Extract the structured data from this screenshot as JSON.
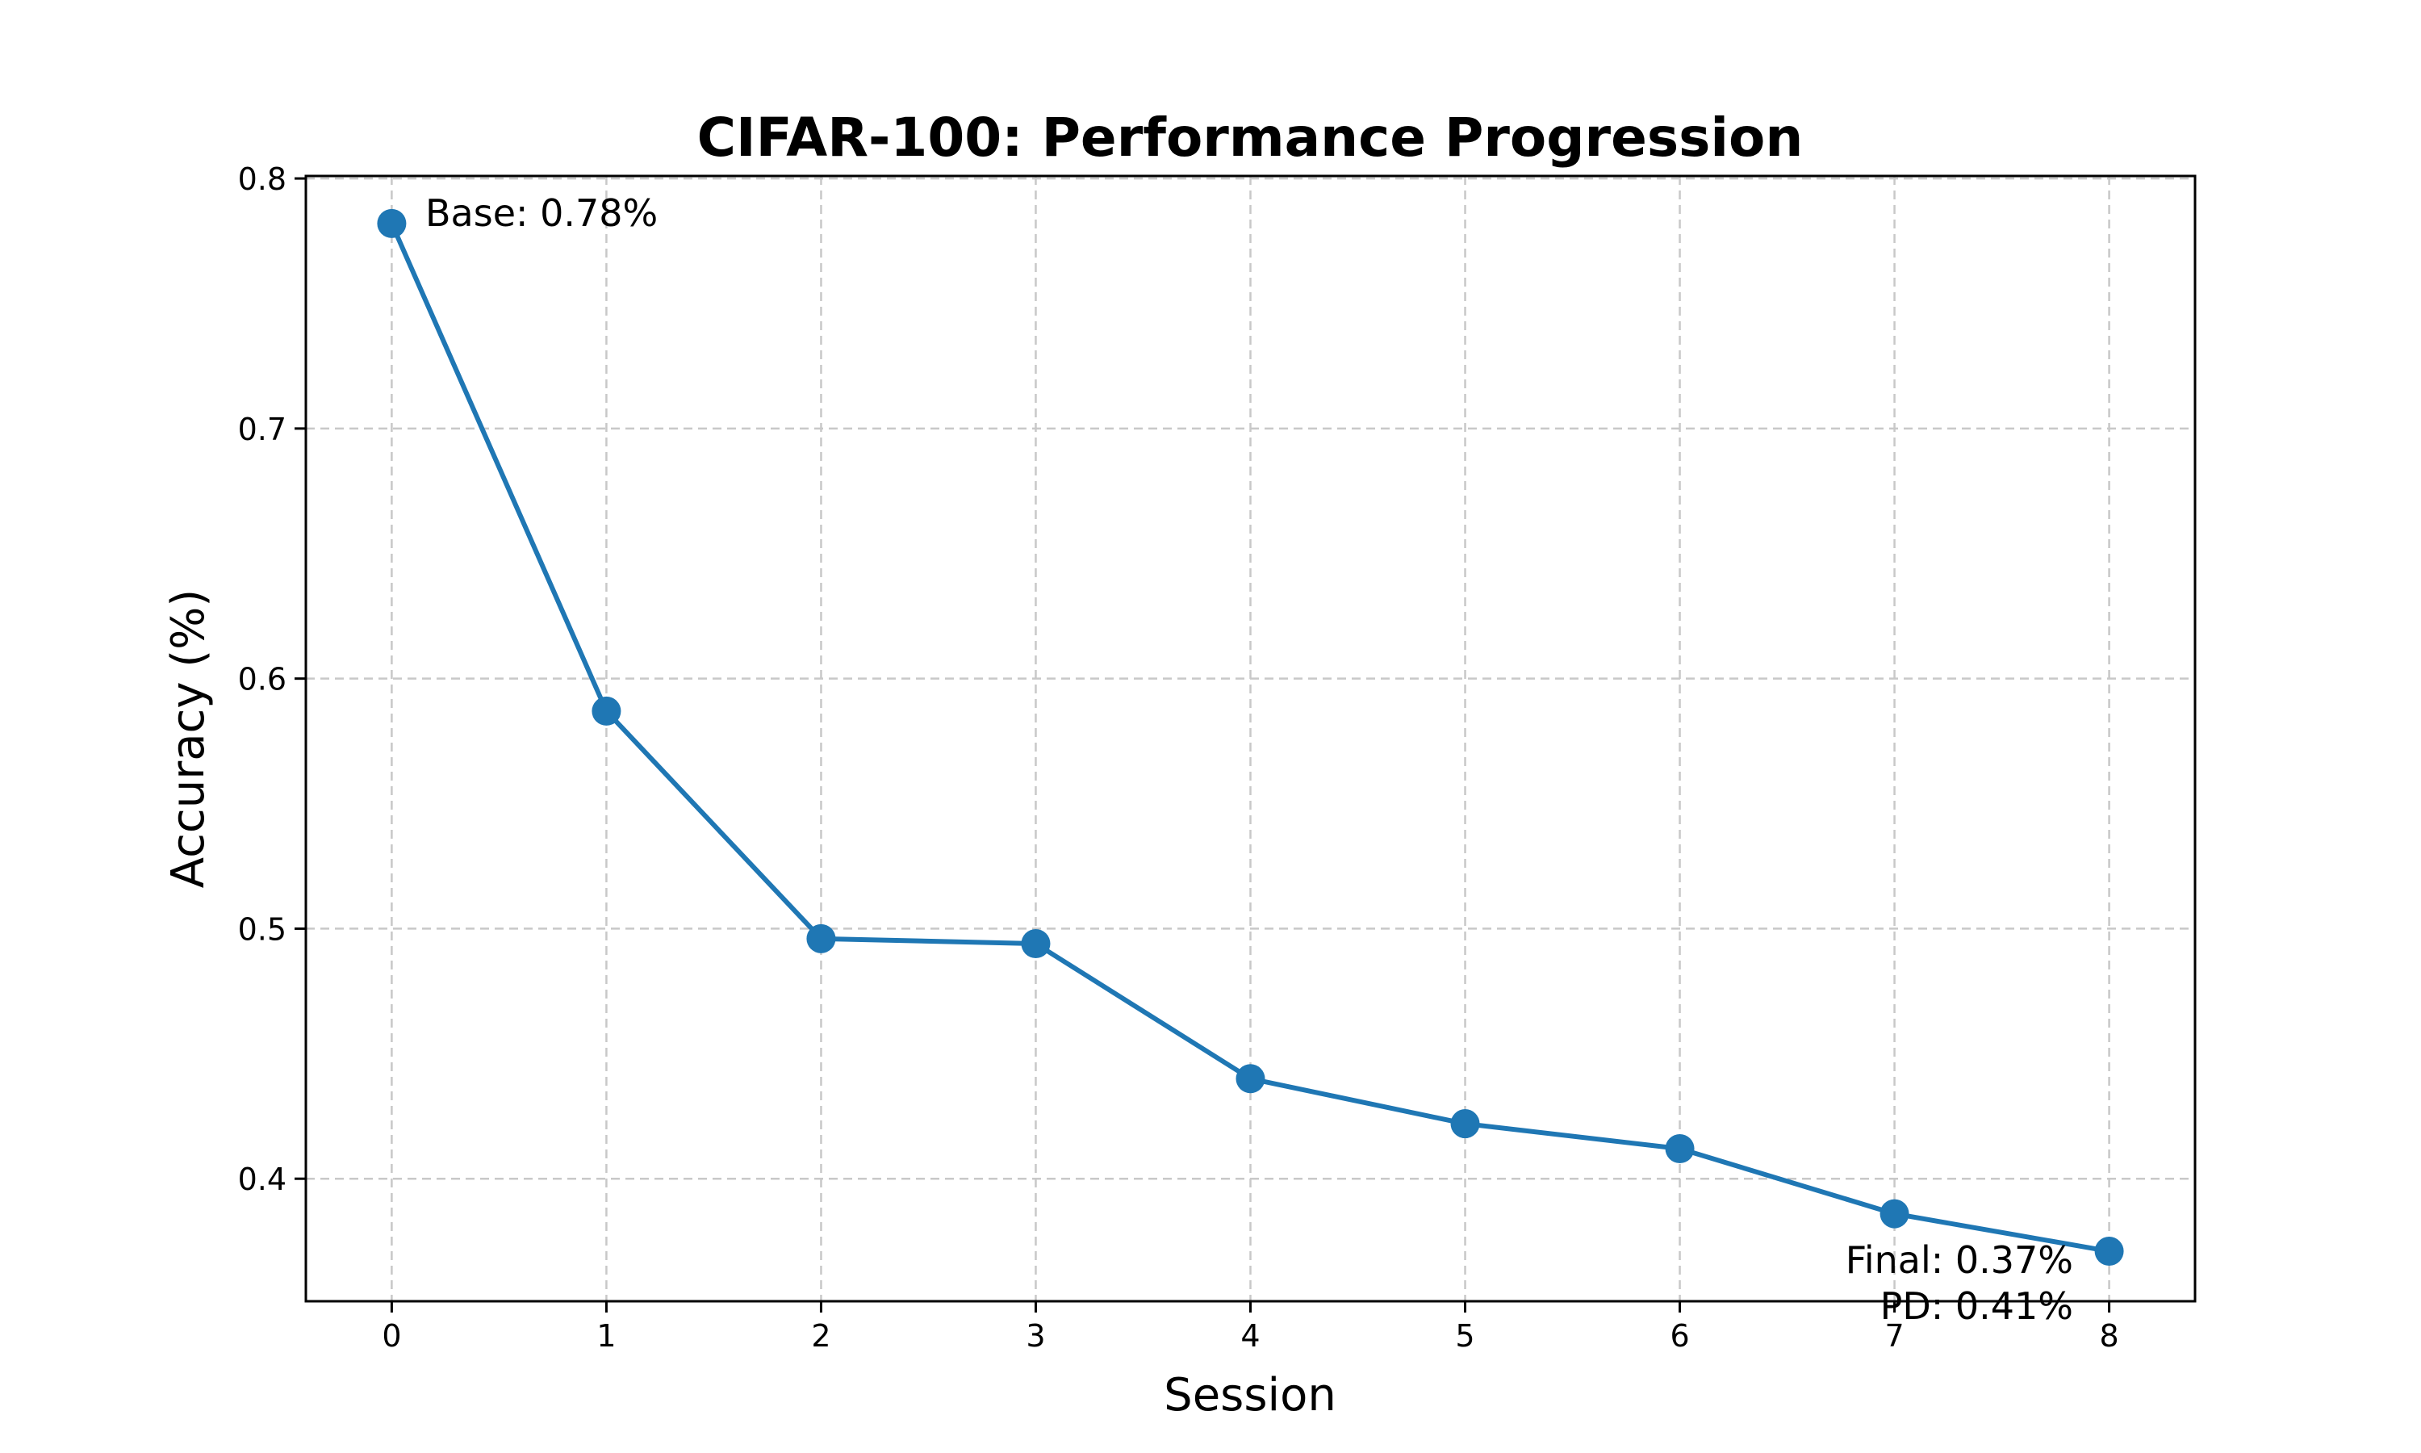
{
  "chart_data": {
    "type": "line",
    "title": "CIFAR-100: Performance Progression",
    "xlabel": "Session",
    "ylabel": "Accuracy (%)",
    "x": [
      0,
      1,
      2,
      3,
      4,
      5,
      6,
      7,
      8
    ],
    "x_ticks": [
      "0",
      "1",
      "2",
      "3",
      "4",
      "5",
      "6",
      "7",
      "8"
    ],
    "xlim": [
      -0.4,
      8.4
    ],
    "y_ticks": [
      "0.4",
      "0.5",
      "0.6",
      "0.7",
      "0.8"
    ],
    "ylim": [
      0.351,
      0.801
    ],
    "grid": true,
    "series": [
      {
        "values": [
          0.782,
          0.587,
          0.496,
          0.494,
          0.44,
          0.422,
          0.412,
          0.386,
          0.371
        ],
        "color": "#1f77b4"
      }
    ],
    "annotations": [
      "Base: 0.78%",
      "Final: 0.37%",
      "PD: 0.41%"
    ]
  }
}
